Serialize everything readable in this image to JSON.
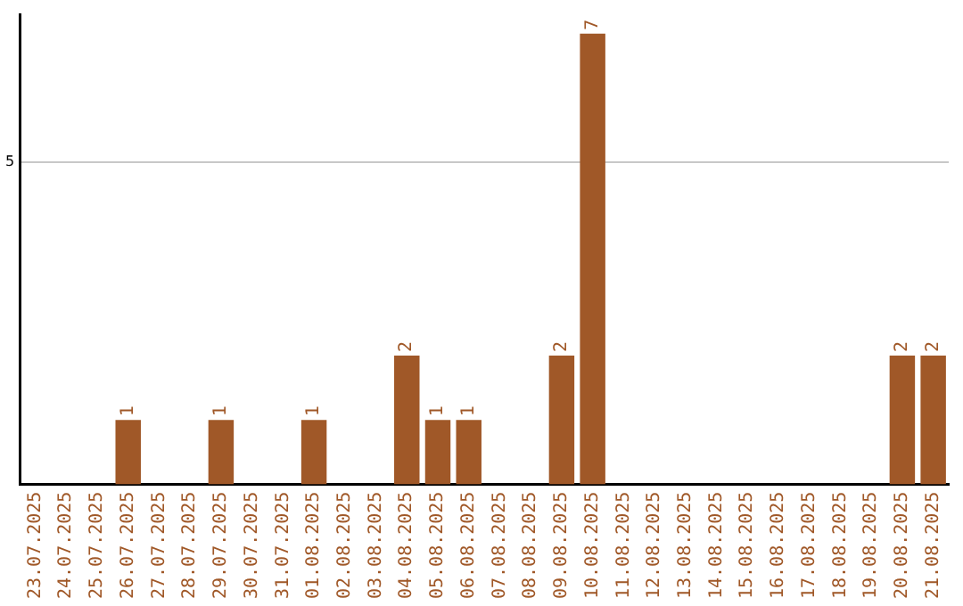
{
  "chart_data": {
    "type": "bar",
    "categories": [
      "23.07.2025",
      "24.07.2025",
      "25.07.2025",
      "26.07.2025",
      "27.07.2025",
      "28.07.2025",
      "29.07.2025",
      "30.07.2025",
      "31.07.2025",
      "01.08.2025",
      "02.08.2025",
      "03.08.2025",
      "04.08.2025",
      "05.08.2025",
      "06.08.2025",
      "07.08.2025",
      "08.08.2025",
      "09.08.2025",
      "10.08.2025",
      "11.08.2025",
      "12.08.2025",
      "13.08.2025",
      "14.08.2025",
      "15.08.2025",
      "16.08.2025",
      "17.08.2025",
      "18.08.2025",
      "19.08.2025",
      "20.08.2025",
      "21.08.2025"
    ],
    "values": [
      0,
      0,
      0,
      1,
      0,
      0,
      1,
      0,
      0,
      1,
      0,
      0,
      2,
      1,
      1,
      0,
      0,
      2,
      7,
      0,
      0,
      0,
      0,
      0,
      0,
      0,
      0,
      0,
      2,
      2
    ],
    "value_labels": [
      null,
      null,
      null,
      "1",
      null,
      null,
      "1",
      null,
      null,
      "1",
      null,
      null,
      "2",
      "1",
      "1",
      null,
      null,
      "2",
      "7",
      null,
      null,
      null,
      null,
      null,
      null,
      null,
      null,
      null,
      "2",
      "2"
    ],
    "color": "#a05828",
    "ylim": [
      0,
      7.3
    ],
    "yticks": [
      5
    ],
    "grid": "y",
    "legend": false
  }
}
